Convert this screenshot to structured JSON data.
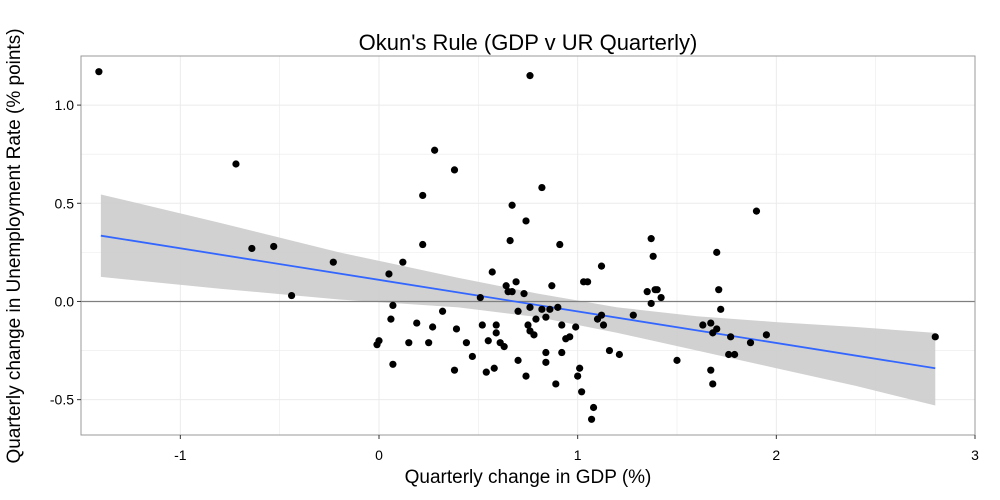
{
  "chart_data": {
    "type": "scatter",
    "title": "Okun's Rule (GDP v UR Quarterly)",
    "xlabel": "Quarterly change in GDP (%)",
    "ylabel": "Quarterly change in Unemployment Rate (% points)",
    "xlim": [
      -1.5,
      3.0
    ],
    "ylim": [
      -0.68,
      1.25
    ],
    "x_ticks": [
      -1,
      0,
      1,
      2,
      3
    ],
    "y_ticks": [
      -0.5,
      0.0,
      0.5,
      1.0
    ],
    "x_tick_labels": [
      "-1",
      "0",
      "1",
      "2",
      "3"
    ],
    "y_tick_labels": [
      "-0.5",
      "0.0",
      "0.5",
      "1.0"
    ],
    "grid": true,
    "reference_line_y": 0.0,
    "colors": {
      "points": "#000000",
      "fit_line": "#3366ff",
      "confidence_band": "#cccccc",
      "panel_border": "#999999",
      "grid": "#ebebeb",
      "zero_line": "#7f7f7f"
    },
    "trend_line": {
      "x": [
        -1.4,
        2.8
      ],
      "y": [
        0.335,
        -0.34
      ]
    },
    "confidence_band": {
      "x": [
        -1.4,
        -0.8,
        -0.2,
        0.4,
        0.8,
        1.2,
        1.6,
        2.0,
        2.4,
        2.8
      ],
      "upper": [
        0.545,
        0.4,
        0.25,
        0.12,
        0.04,
        -0.03,
        -0.075,
        -0.105,
        -0.13,
        -0.16
      ],
      "lower": [
        0.125,
        0.065,
        0.01,
        -0.03,
        -0.08,
        -0.16,
        -0.25,
        -0.34,
        -0.43,
        -0.53
      ]
    },
    "points": [
      [
        -1.41,
        1.17
      ],
      [
        -0.72,
        0.7
      ],
      [
        -0.64,
        0.27
      ],
      [
        -0.53,
        0.28
      ],
      [
        -0.44,
        0.03
      ],
      [
        -0.23,
        0.2
      ],
      [
        -0.01,
        -0.22
      ],
      [
        0.0,
        -0.2
      ],
      [
        0.05,
        0.14
      ],
      [
        0.06,
        -0.09
      ],
      [
        0.07,
        -0.02
      ],
      [
        0.07,
        -0.32
      ],
      [
        0.12,
        0.2
      ],
      [
        0.15,
        -0.21
      ],
      [
        0.19,
        -0.11
      ],
      [
        0.22,
        0.54
      ],
      [
        0.22,
        0.29
      ],
      [
        0.25,
        -0.21
      ],
      [
        0.27,
        -0.13
      ],
      [
        0.28,
        0.77
      ],
      [
        0.32,
        -0.05
      ],
      [
        0.38,
        0.67
      ],
      [
        0.38,
        -0.35
      ],
      [
        0.39,
        -0.14
      ],
      [
        0.44,
        -0.21
      ],
      [
        0.47,
        -0.28
      ],
      [
        0.51,
        0.02
      ],
      [
        0.52,
        -0.12
      ],
      [
        0.54,
        -0.36
      ],
      [
        0.55,
        -0.2
      ],
      [
        0.57,
        0.15
      ],
      [
        0.58,
        -0.34
      ],
      [
        0.59,
        -0.12
      ],
      [
        0.59,
        -0.16
      ],
      [
        0.61,
        -0.21
      ],
      [
        0.63,
        -0.23
      ],
      [
        0.64,
        0.08
      ],
      [
        0.65,
        0.05
      ],
      [
        0.66,
        0.31
      ],
      [
        0.67,
        0.49
      ],
      [
        0.67,
        0.05
      ],
      [
        0.69,
        0.1
      ],
      [
        0.7,
        -0.3
      ],
      [
        0.7,
        -0.05
      ],
      [
        0.73,
        0.04
      ],
      [
        0.74,
        0.41
      ],
      [
        0.74,
        -0.38
      ],
      [
        0.75,
        -0.12
      ],
      [
        0.76,
        -0.15
      ],
      [
        0.76,
        -0.03
      ],
      [
        0.76,
        1.15
      ],
      [
        0.78,
        -0.17
      ],
      [
        0.79,
        -0.09
      ],
      [
        0.82,
        0.58
      ],
      [
        0.82,
        -0.04
      ],
      [
        0.84,
        -0.26
      ],
      [
        0.84,
        -0.31
      ],
      [
        0.84,
        -0.08
      ],
      [
        0.86,
        -0.04
      ],
      [
        0.87,
        0.08
      ],
      [
        0.89,
        -0.42
      ],
      [
        0.9,
        -0.03
      ],
      [
        0.91,
        0.29
      ],
      [
        0.92,
        -0.12
      ],
      [
        0.92,
        -0.26
      ],
      [
        0.94,
        -0.19
      ],
      [
        0.96,
        -0.18
      ],
      [
        0.99,
        -0.13
      ],
      [
        1.0,
        -0.38
      ],
      [
        1.01,
        -0.34
      ],
      [
        1.02,
        -0.46
      ],
      [
        1.03,
        0.1
      ],
      [
        1.05,
        0.1
      ],
      [
        1.07,
        -0.6
      ],
      [
        1.08,
        -0.54
      ],
      [
        1.1,
        -0.09
      ],
      [
        1.12,
        -0.07
      ],
      [
        1.12,
        0.18
      ],
      [
        1.13,
        -0.12
      ],
      [
        1.16,
        -0.25
      ],
      [
        1.21,
        -0.27
      ],
      [
        1.28,
        -0.07
      ],
      [
        1.35,
        0.05
      ],
      [
        1.37,
        -0.01
      ],
      [
        1.37,
        0.32
      ],
      [
        1.38,
        0.23
      ],
      [
        1.39,
        0.06
      ],
      [
        1.4,
        0.06
      ],
      [
        1.42,
        0.02
      ],
      [
        1.5,
        -0.3
      ],
      [
        1.63,
        -0.12
      ],
      [
        1.67,
        -0.11
      ],
      [
        1.67,
        -0.35
      ],
      [
        1.68,
        -0.42
      ],
      [
        1.68,
        -0.16
      ],
      [
        1.7,
        -0.14
      ],
      [
        1.7,
        0.25
      ],
      [
        1.71,
        0.06
      ],
      [
        1.72,
        -0.04
      ],
      [
        1.76,
        -0.27
      ],
      [
        1.77,
        -0.18
      ],
      [
        1.79,
        -0.27
      ],
      [
        1.87,
        -0.21
      ],
      [
        1.9,
        0.46
      ],
      [
        1.95,
        -0.17
      ],
      [
        2.8,
        -0.18
      ]
    ]
  }
}
